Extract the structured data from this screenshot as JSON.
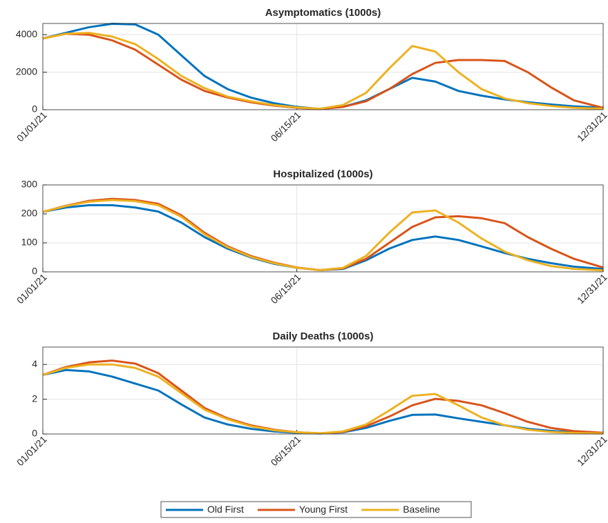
{
  "chart_data": [
    {
      "type": "line",
      "title": "Asymptomatics (1000s)",
      "x": [
        "2021-01-01",
        "2021-01-16",
        "2021-01-31",
        "2021-02-15",
        "2021-03-02",
        "2021-03-17",
        "2021-04-01",
        "2021-04-16",
        "2021-05-01",
        "2021-05-16",
        "2021-05-31",
        "2021-06-15",
        "2021-06-30",
        "2021-07-15",
        "2021-07-30",
        "2021-08-14",
        "2021-08-29",
        "2021-09-13",
        "2021-09-28",
        "2021-10-13",
        "2021-10-28",
        "2021-11-12",
        "2021-11-27",
        "2021-12-12",
        "2021-12-31"
      ],
      "xlim": [
        "2021-01-01",
        "2021-12-31"
      ],
      "xticks": [
        {
          "value": "2021-01-01",
          "label": "01/01/21"
        },
        {
          "value": "2021-06-15",
          "label": "06/15/21"
        },
        {
          "value": "2021-12-31",
          "label": "12/31/21"
        }
      ],
      "ylim": [
        0,
        4600
      ],
      "yticks": [
        0,
        2000,
        4000
      ],
      "grid": true,
      "series": [
        {
          "name": "Old First",
          "color": "#0072bd",
          "values": [
            3800,
            4100,
            4400,
            4580,
            4550,
            4000,
            2900,
            1800,
            1100,
            650,
            350,
            150,
            40,
            150,
            500,
            1100,
            1700,
            1500,
            1000,
            750,
            550,
            400,
            280,
            180,
            100
          ]
        },
        {
          "name": "Young First",
          "color": "#d95319",
          "values": [
            3800,
            4050,
            4000,
            3700,
            3200,
            2400,
            1600,
            1000,
            650,
            400,
            220,
            100,
            40,
            150,
            450,
            1100,
            1900,
            2500,
            2650,
            2650,
            2600,
            2000,
            1200,
            500,
            100
          ]
        },
        {
          "name": "Baseline",
          "color": "#edb120",
          "values": [
            3800,
            4050,
            4100,
            3900,
            3500,
            2700,
            1800,
            1150,
            700,
            450,
            250,
            120,
            50,
            250,
            900,
            2200,
            3400,
            3100,
            2000,
            1100,
            600,
            350,
            200,
            100,
            50
          ]
        }
      ]
    },
    {
      "type": "line",
      "title": "Hospitalized (1000s)",
      "x": [
        "2021-01-01",
        "2021-01-16",
        "2021-01-31",
        "2021-02-15",
        "2021-03-02",
        "2021-03-17",
        "2021-04-01",
        "2021-04-16",
        "2021-05-01",
        "2021-05-16",
        "2021-05-31",
        "2021-06-15",
        "2021-06-30",
        "2021-07-15",
        "2021-07-30",
        "2021-08-14",
        "2021-08-29",
        "2021-09-13",
        "2021-09-28",
        "2021-10-13",
        "2021-10-28",
        "2021-11-12",
        "2021-11-27",
        "2021-12-12",
        "2021-12-31"
      ],
      "xlim": [
        "2021-01-01",
        "2021-12-31"
      ],
      "xticks": [
        {
          "value": "2021-01-01",
          "label": "01/01/21"
        },
        {
          "value": "2021-06-15",
          "label": "06/15/21"
        },
        {
          "value": "2021-12-31",
          "label": "12/31/21"
        }
      ],
      "ylim": [
        0,
        300
      ],
      "yticks": [
        0,
        100,
        200,
        300
      ],
      "grid": true,
      "series": [
        {
          "color": "#0072bd",
          "values": [
            207,
            222,
            230,
            230,
            222,
            208,
            170,
            120,
            80,
            50,
            28,
            14,
            6,
            10,
            40,
            80,
            110,
            122,
            110,
            88,
            65,
            45,
            30,
            18,
            10
          ]
        },
        {
          "color": "#d95319",
          "values": [
            207,
            228,
            245,
            252,
            248,
            235,
            195,
            135,
            88,
            55,
            32,
            15,
            6,
            12,
            45,
            100,
            155,
            188,
            192,
            185,
            168,
            120,
            80,
            45,
            15
          ]
        },
        {
          "color": "#edb120",
          "values": [
            207,
            227,
            242,
            248,
            244,
            230,
            190,
            130,
            85,
            52,
            30,
            14,
            6,
            14,
            55,
            135,
            205,
            212,
            170,
            115,
            70,
            40,
            20,
            10,
            5
          ]
        }
      ]
    },
    {
      "type": "line",
      "title": "Daily Deaths (1000s)",
      "x": [
        "2021-01-01",
        "2021-01-16",
        "2021-01-31",
        "2021-02-15",
        "2021-03-02",
        "2021-03-17",
        "2021-04-01",
        "2021-04-16",
        "2021-05-01",
        "2021-05-16",
        "2021-05-31",
        "2021-06-15",
        "2021-06-30",
        "2021-07-15",
        "2021-07-30",
        "2021-08-14",
        "2021-08-29",
        "2021-09-13",
        "2021-09-28",
        "2021-10-13",
        "2021-10-28",
        "2021-11-12",
        "2021-11-27",
        "2021-12-12",
        "2021-12-31"
      ],
      "xlim": [
        "2021-01-01",
        "2021-12-31"
      ],
      "xticks": [
        {
          "value": "2021-01-01",
          "label": "01/01/21"
        },
        {
          "value": "2021-06-15",
          "label": "06/15/21"
        },
        {
          "value": "2021-12-31",
          "label": "12/31/21"
        }
      ],
      "ylim": [
        0,
        5
      ],
      "yticks": [
        0,
        2,
        4
      ],
      "grid": true,
      "series": [
        {
          "color": "#0072bd",
          "values": [
            3.4,
            3.68,
            3.6,
            3.3,
            2.9,
            2.5,
            1.7,
            0.95,
            0.55,
            0.3,
            0.15,
            0.07,
            0.03,
            0.1,
            0.35,
            0.75,
            1.1,
            1.12,
            0.9,
            0.7,
            0.5,
            0.3,
            0.18,
            0.1,
            0.05
          ]
        },
        {
          "color": "#d95319",
          "values": [
            3.4,
            3.85,
            4.12,
            4.22,
            4.05,
            3.5,
            2.5,
            1.5,
            0.9,
            0.5,
            0.25,
            0.1,
            0.04,
            0.12,
            0.45,
            1.0,
            1.65,
            2.02,
            1.9,
            1.65,
            1.2,
            0.7,
            0.35,
            0.17,
            0.07
          ]
        },
        {
          "color": "#edb120",
          "values": [
            3.4,
            3.8,
            4.0,
            4.0,
            3.8,
            3.3,
            2.35,
            1.4,
            0.85,
            0.45,
            0.22,
            0.1,
            0.04,
            0.15,
            0.55,
            1.35,
            2.2,
            2.3,
            1.65,
            0.95,
            0.5,
            0.25,
            0.12,
            0.06,
            0.03
          ]
        }
      ]
    }
  ]
}
